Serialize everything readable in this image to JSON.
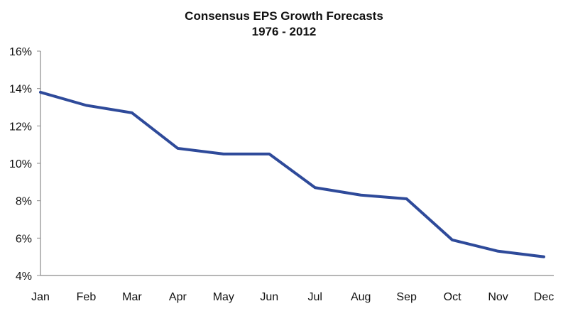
{
  "chart_data": {
    "type": "line",
    "title": "Consensus EPS Growth Forecasts",
    "subtitle": "1976 - 2012",
    "xlabel": "",
    "ylabel": "",
    "categories": [
      "Jan",
      "Feb",
      "Mar",
      "Apr",
      "May",
      "Jun",
      "Jul",
      "Aug",
      "Sep",
      "Oct",
      "Nov",
      "Dec"
    ],
    "series": [
      {
        "values": [
          13.8,
          13.1,
          12.7,
          10.8,
          10.5,
          10.5,
          8.7,
          8.3,
          8.1,
          5.9,
          5.3,
          5.0
        ]
      }
    ],
    "ylim": [
      4,
      16
    ],
    "yticks": [
      "4%",
      "6%",
      "8%",
      "10%",
      "12%",
      "14%",
      "16%"
    ],
    "grid": false,
    "line_color": "#2e4a9a"
  }
}
